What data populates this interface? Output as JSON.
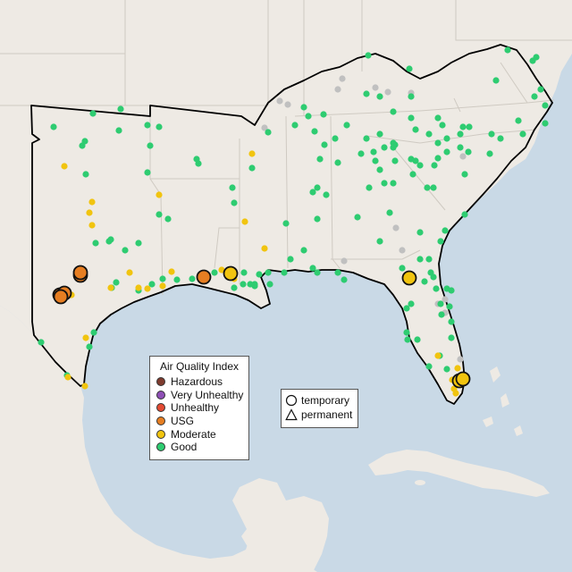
{
  "aqi_legend": {
    "title": "Air Quality Index",
    "categories": [
      {
        "label": "Hazardous",
        "color": "#7e3b2e"
      },
      {
        "label": "Very Unhealthy",
        "color": "#8e4fb5"
      },
      {
        "label": "Unhealthy",
        "color": "#e34a33"
      },
      {
        "label": "USG",
        "color": "#e67e22"
      },
      {
        "label": "Moderate",
        "color": "#f1c40f"
      },
      {
        "label": "Good",
        "color": "#2ecc71"
      }
    ]
  },
  "shape_legend": {
    "temporary": "temporary",
    "permanent": "permanent"
  },
  "colors": {
    "land": "#eeeae4",
    "water": "#c9d9e6",
    "border": "#cfcac2",
    "region_outline": "#000000",
    "no_data": "#c0c0c0"
  },
  "icons": [
    "circle-marker-icon",
    "triangle-marker-icon"
  ]
}
